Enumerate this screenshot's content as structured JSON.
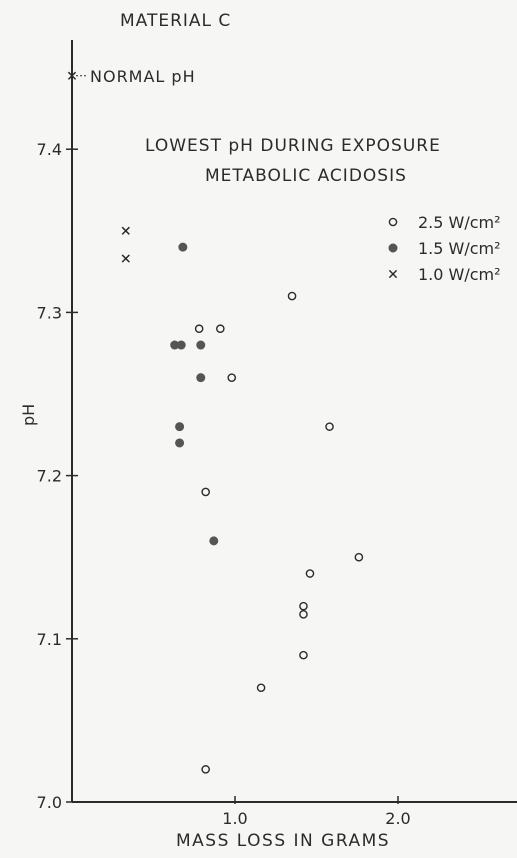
{
  "chart_data": {
    "type": "scatter",
    "title": "MATERIAL C",
    "xlabel": "MASS LOSS IN GRAMS",
    "ylabel": "pH",
    "xlim": [
      0.0,
      2.7
    ],
    "ylim": [
      7.0,
      7.47
    ],
    "x_ticks": [
      {
        "value": 1.0,
        "label": "1.0"
      },
      {
        "value": 2.0,
        "label": "2.0"
      }
    ],
    "y_ticks": [
      {
        "value": 7.0,
        "label": "7.0"
      },
      {
        "value": 7.1,
        "label": "7.1"
      },
      {
        "value": 7.2,
        "label": "7.2"
      },
      {
        "value": 7.3,
        "label": "7.3"
      },
      {
        "value": 7.4,
        "label": "7.4"
      }
    ],
    "grid": false,
    "annotations": {
      "normal_ph": {
        "text": "NORMAL pH",
        "x": 0.0,
        "y": 7.445
      },
      "heading_line1": "LOWEST pH DURING EXPOSURE",
      "heading_line2": "METABOLIC ACIDOSIS"
    },
    "legend_position": "top-right",
    "series": [
      {
        "name": "2.5 W/cm²",
        "marker": "open-circle",
        "color": "#2b2b2b",
        "points": [
          {
            "x": 0.78,
            "y": 7.29
          },
          {
            "x": 0.91,
            "y": 7.29
          },
          {
            "x": 1.35,
            "y": 7.31
          },
          {
            "x": 0.98,
            "y": 7.26
          },
          {
            "x": 1.58,
            "y": 7.23
          },
          {
            "x": 0.82,
            "y": 7.19
          },
          {
            "x": 1.76,
            "y": 7.15
          },
          {
            "x": 1.46,
            "y": 7.14
          },
          {
            "x": 1.42,
            "y": 7.12
          },
          {
            "x": 1.42,
            "y": 7.115
          },
          {
            "x": 1.42,
            "y": 7.09
          },
          {
            "x": 1.16,
            "y": 7.07
          },
          {
            "x": 0.82,
            "y": 7.02
          }
        ]
      },
      {
        "name": "1.5 W/cm²",
        "marker": "filled-circle",
        "color": "#555555",
        "points": [
          {
            "x": 0.68,
            "y": 7.34
          },
          {
            "x": 0.63,
            "y": 7.28
          },
          {
            "x": 0.67,
            "y": 7.28
          },
          {
            "x": 0.79,
            "y": 7.28
          },
          {
            "x": 0.79,
            "y": 7.26
          },
          {
            "x": 0.66,
            "y": 7.23
          },
          {
            "x": 0.66,
            "y": 7.22
          },
          {
            "x": 0.87,
            "y": 7.16
          }
        ]
      },
      {
        "name": "1.0 W/cm²",
        "marker": "x",
        "color": "#2b2b2b",
        "points": [
          {
            "x": 0.33,
            "y": 7.35
          },
          {
            "x": 0.33,
            "y": 7.333
          }
        ]
      }
    ]
  }
}
